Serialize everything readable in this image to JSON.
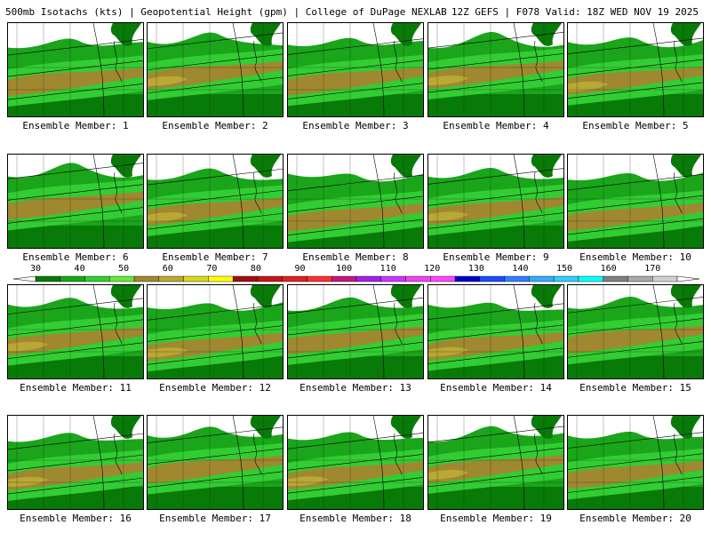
{
  "header": {
    "left": "500mb Isotachs (kts) | Geopotential Height (gpm) | College of DuPage NEXLAB",
    "right": "12Z GEFS | F078 Valid: 18Z WED NOV 19 2025"
  },
  "legend": {
    "labels": [
      "30",
      "40",
      "50",
      "60",
      "70",
      "80",
      "90",
      "100",
      "110",
      "120",
      "130",
      "140",
      "150",
      "160",
      "170"
    ],
    "colors": [
      "#087a08",
      "#1aa51a",
      "#32cd32",
      "#66e83a",
      "#a08830",
      "#b9a833",
      "#d8d81c",
      "#ffff00",
      "#a01010",
      "#c01818",
      "#e02020",
      "#ff3030",
      "#c71585",
      "#a020f0",
      "#cc33ff",
      "#ee44ee",
      "#ff44ff",
      "#0000cc",
      "#1a4bff",
      "#2f7fff",
      "#33aaff",
      "#33ccff",
      "#00ffff",
      "#808080",
      "#a8a8a8",
      "#d0d0d0"
    ]
  },
  "panels": [
    {
      "caption": "Ensemble Member: 1"
    },
    {
      "caption": "Ensemble Member: 2"
    },
    {
      "caption": "Ensemble Member: 3"
    },
    {
      "caption": "Ensemble Member: 4"
    },
    {
      "caption": "Ensemble Member: 5"
    },
    {
      "caption": "Ensemble Member: 6"
    },
    {
      "caption": "Ensemble Member: 7"
    },
    {
      "caption": "Ensemble Member: 8"
    },
    {
      "caption": "Ensemble Member: 9"
    },
    {
      "caption": "Ensemble Member: 10"
    },
    {
      "caption": "Ensemble Member: 11"
    },
    {
      "caption": "Ensemble Member: 12"
    },
    {
      "caption": "Ensemble Member: 13"
    },
    {
      "caption": "Ensemble Member: 14"
    },
    {
      "caption": "Ensemble Member: 15"
    },
    {
      "caption": "Ensemble Member: 16"
    },
    {
      "caption": "Ensemble Member: 17"
    },
    {
      "caption": "Ensemble Member: 18"
    },
    {
      "caption": "Ensemble Member: 19"
    },
    {
      "caption": "Ensemble Member: 20"
    }
  ]
}
